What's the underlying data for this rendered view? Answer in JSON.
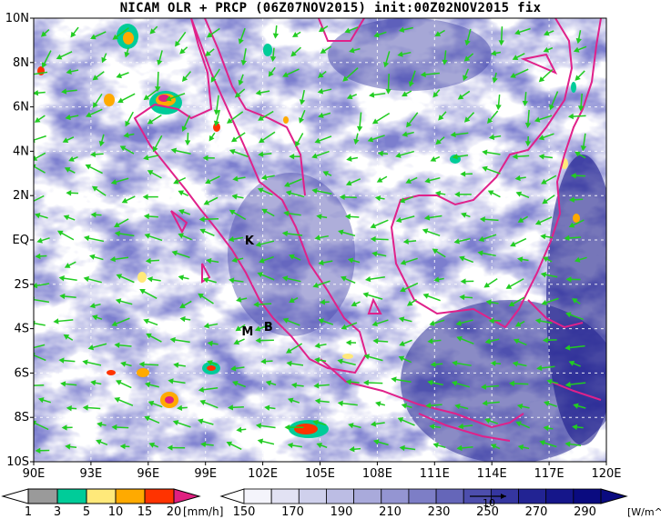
{
  "title": "NICAM OLR + PRCP (06Z07NOV2015) init:00Z02NOV2015 fix",
  "map": {
    "lon_labels": [
      "90E",
      "93E",
      "96E",
      "99E",
      "102E",
      "105E",
      "108E",
      "111E",
      "114E",
      "117E",
      "120E"
    ],
    "lat_labels": [
      "10N",
      "8N",
      "6N",
      "4N",
      "2N",
      "EQ",
      "2S",
      "4S",
      "6S",
      "8S",
      "10S"
    ],
    "lon_range": [
      90,
      120
    ],
    "lat_range": [
      -10,
      10
    ],
    "gridlines": "dashed",
    "coastline_color": "#e0218a",
    "wind_vector_color": "#22cc22",
    "places": [
      {
        "label": "K",
        "lon": 101.3,
        "lat": -0.2
      },
      {
        "label": "M",
        "lon": 101.2,
        "lat": -4.3
      },
      {
        "label": "B",
        "lon": 102.3,
        "lat": -4.1
      }
    ]
  },
  "precip_colorbar": {
    "labels": [
      "1",
      "3",
      "5",
      "10",
      "15",
      "20"
    ],
    "unit": "[mm/h]",
    "colors": [
      "#9a9a9a",
      "#00cc99",
      "#ffe97a",
      "#ffaa00",
      "#ff3300",
      "#e02080"
    ]
  },
  "olr_colorbar": {
    "labels": [
      "150",
      "170",
      "190",
      "210",
      "230",
      "250",
      "270",
      "290"
    ],
    "unit": "[W/m^2]",
    "reference_vector": "10",
    "colors": [
      "#f4f4fb",
      "#e2e2f3",
      "#cfd0ec",
      "#bcbde4",
      "#a9aadb",
      "#9495d2",
      "#7d7ec6",
      "#6566b9",
      "#4d4ead",
      "#3536a0",
      "#222393",
      "#15168a",
      "#0a0b80"
    ]
  }
}
